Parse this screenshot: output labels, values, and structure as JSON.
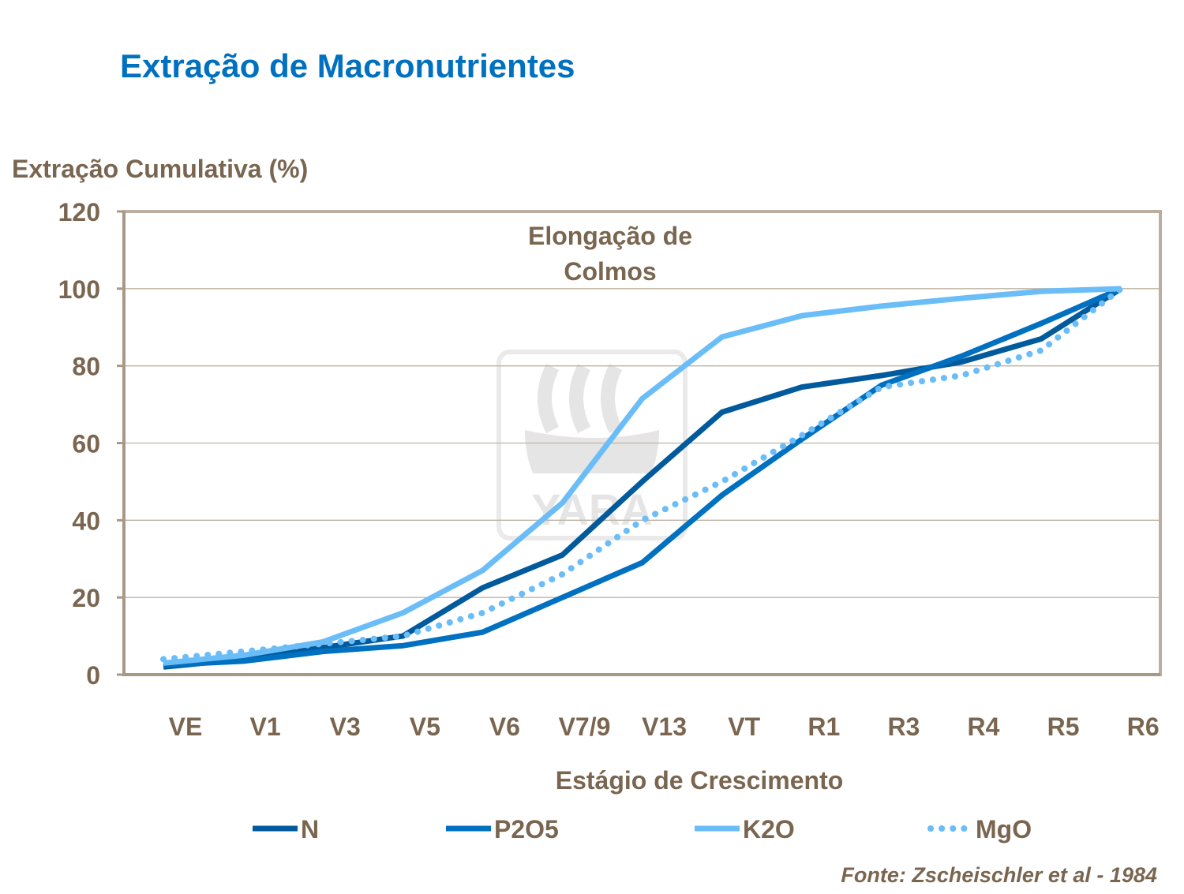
{
  "chart_data": {
    "type": "line",
    "title": "Extração de Macronutrientes",
    "ylabel": "Extração Cumulativa (%)",
    "xlabel": "Estágio de Crescimento",
    "annotation": "Elongação de Colmos",
    "source": "Fonte: Zscheischler  et al - 1984",
    "watermark": "YARA",
    "ylim": [
      0,
      120
    ],
    "yticks": [
      0,
      20,
      40,
      60,
      80,
      100,
      120
    ],
    "grid": true,
    "legend_position": "bottom",
    "categories": [
      "VE",
      "V1",
      "V3",
      "V5",
      "V6",
      "V7/9",
      "V13",
      "VT",
      "R1",
      "R3",
      "R4",
      "R5",
      "R6"
    ],
    "series": [
      {
        "name": "N",
        "color": "#005a9c",
        "style": "solid",
        "values": [
          2,
          4,
          7,
          10,
          22.5,
          31,
          50,
          68,
          74.5,
          77.5,
          81,
          87,
          100
        ]
      },
      {
        "name": "P2O5",
        "color": "#0070c0",
        "style": "solid",
        "values": [
          2.5,
          3.5,
          6,
          7.5,
          11,
          20,
          29,
          46.5,
          61,
          75,
          82.5,
          91,
          100
        ]
      },
      {
        "name": "K2O",
        "color": "#6bbdf8",
        "style": "solid",
        "values": [
          3,
          5,
          8.5,
          16,
          27,
          44.5,
          71.5,
          87.5,
          93,
          95.5,
          97.5,
          99.3,
          100
        ]
      },
      {
        "name": "MgO",
        "color": "#6bbdf8",
        "style": "dotted",
        "values": [
          4,
          6,
          8,
          10,
          16,
          26,
          40,
          50,
          62,
          74.5,
          77.5,
          84,
          100
        ]
      }
    ]
  }
}
